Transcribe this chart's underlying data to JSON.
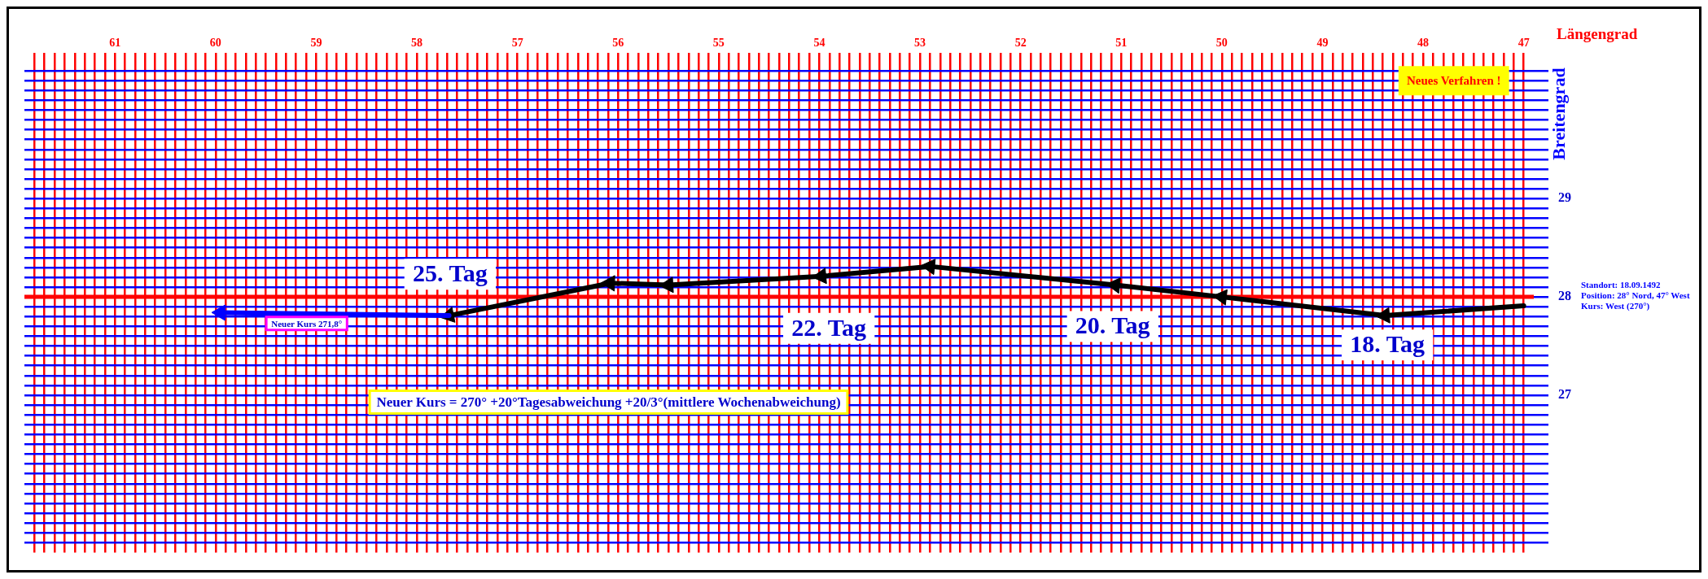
{
  "chart_data": {
    "type": "line",
    "xlabel": "Längengrad",
    "ylabel": "Breitengrad",
    "xlim": [
      61.9,
      46.9
    ],
    "ylim": [
      25.4,
      30.4
    ],
    "xticks": [
      {
        "value": 61.8,
        "label": null
      },
      {
        "value": 61.7,
        "label": null
      },
      {
        "value": 61.6,
        "label": null
      },
      {
        "value": 61.5,
        "label": null
      },
      {
        "value": 61.4,
        "label": null
      },
      {
        "value": 61.3,
        "label": null
      },
      {
        "value": 61.2,
        "label": null
      },
      {
        "value": 61.1,
        "label": null
      },
      61,
      {
        "value": 60.9,
        "label": null
      },
      {
        "value": 60.8,
        "label": null
      },
      {
        "value": 60.7,
        "label": null
      },
      {
        "value": 60.6,
        "label": null
      },
      {
        "value": 60.5,
        "label": null
      },
      {
        "value": 60.4,
        "label": null
      },
      {
        "value": 60.3,
        "label": null
      },
      {
        "value": 60.2,
        "label": null
      },
      {
        "value": 60.1,
        "label": null
      },
      60,
      {
        "value": 59.9,
        "label": null
      },
      {
        "value": 59.8,
        "label": null
      },
      {
        "value": 59.7,
        "label": null
      },
      {
        "value": 59.6,
        "label": null
      },
      {
        "value": 59.5,
        "label": null
      },
      {
        "value": 59.4,
        "label": null
      },
      {
        "value": 59.3,
        "label": null
      },
      {
        "value": 59.2,
        "label": null
      },
      {
        "value": 59.1,
        "label": null
      },
      59,
      {
        "value": 58.9,
        "label": null
      },
      {
        "value": 58.8,
        "label": null
      },
      {
        "value": 58.7,
        "label": null
      },
      {
        "value": 58.6,
        "label": null
      },
      {
        "value": 58.5,
        "label": null
      },
      {
        "value": 58.4,
        "label": null
      },
      {
        "value": 58.3,
        "label": null
      },
      {
        "value": 58.2,
        "label": null
      },
      {
        "value": 58.1,
        "label": null
      },
      58,
      {
        "value": 57.9,
        "label": null
      },
      {
        "value": 57.8,
        "label": null
      },
      {
        "value": 57.7,
        "label": null
      },
      {
        "value": 57.6,
        "label": null
      },
      {
        "value": 57.5,
        "label": null
      },
      {
        "value": 57.4,
        "label": null
      },
      {
        "value": 57.3,
        "label": null
      },
      {
        "value": 57.2,
        "label": null
      },
      {
        "value": 57.1,
        "label": null
      },
      57,
      {
        "value": 56.9,
        "label": null
      },
      {
        "value": 56.8,
        "label": null
      },
      {
        "value": 56.7,
        "label": null
      },
      {
        "value": 56.6,
        "label": null
      },
      {
        "value": 56.5,
        "label": null
      },
      {
        "value": 56.4,
        "label": null
      },
      {
        "value": 56.3,
        "label": null
      },
      {
        "value": 56.2,
        "label": null
      },
      {
        "value": 56.1,
        "label": null
      },
      56,
      {
        "value": 55.9,
        "label": null
      },
      {
        "value": 55.8,
        "label": null
      },
      {
        "value": 55.7,
        "label": null
      },
      {
        "value": 55.6,
        "label": null
      },
      {
        "value": 55.5,
        "label": null
      },
      {
        "value": 55.4,
        "label": null
      },
      {
        "value": 55.3,
        "label": null
      },
      {
        "value": 55.2,
        "label": null
      },
      {
        "value": 55.1,
        "label": null
      },
      55,
      {
        "value": 54.9,
        "label": null
      },
      {
        "value": 54.8,
        "label": null
      },
      {
        "value": 54.7,
        "label": null
      },
      {
        "value": 54.6,
        "label": null
      },
      {
        "value": 54.5,
        "label": null
      },
      {
        "value": 54.4,
        "label": null
      },
      {
        "value": 54.3,
        "label": null
      },
      {
        "value": 54.2,
        "label": null
      },
      {
        "value": 54.1,
        "label": null
      },
      54,
      {
        "value": 53.9,
        "label": null
      },
      {
        "value": 53.8,
        "label": null
      },
      {
        "value": 53.7,
        "label": null
      },
      {
        "value": 53.6,
        "label": null
      },
      {
        "value": 53.5,
        "label": null
      },
      {
        "value": 53.4,
        "label": null
      },
      {
        "value": 53.3,
        "label": null
      },
      {
        "value": 53.2,
        "label": null
      },
      {
        "value": 53.1,
        "label": null
      },
      53,
      {
        "value": 52.9,
        "label": null
      },
      {
        "value": 52.8,
        "label": null
      },
      {
        "value": 52.7,
        "label": null
      },
      {
        "value": 52.6,
        "label": null
      },
      {
        "value": 52.5,
        "label": null
      },
      {
        "value": 52.4,
        "label": null
      },
      {
        "value": 52.3,
        "label": null
      },
      {
        "value": 52.2,
        "label": null
      },
      {
        "value": 52.1,
        "label": null
      },
      52,
      {
        "value": 51.9,
        "label": null
      },
      {
        "value": 51.8,
        "label": null
      },
      {
        "value": 51.7,
        "label": null
      },
      {
        "value": 51.6,
        "label": null
      },
      {
        "value": 51.5,
        "label": null
      },
      {
        "value": 51.4,
        "label": null
      },
      {
        "value": 51.3,
        "label": null
      },
      {
        "value": 51.2,
        "label": null
      },
      {
        "value": 51.1,
        "label": null
      },
      51,
      {
        "value": 50.9,
        "label": null
      },
      {
        "value": 50.8,
        "label": null
      },
      {
        "value": 50.7,
        "label": null
      },
      {
        "value": 50.6,
        "label": null
      },
      {
        "value": 50.5,
        "label": null
      },
      {
        "value": 50.4,
        "label": null
      },
      {
        "value": 50.3,
        "label": null
      },
      {
        "value": 50.2,
        "label": null
      },
      {
        "value": 50.1,
        "label": null
      },
      50,
      {
        "value": 49.9,
        "label": null
      },
      {
        "value": 49.8,
        "label": null
      },
      {
        "value": 49.7,
        "label": null
      },
      {
        "value": 49.6,
        "label": null
      },
      {
        "value": 49.5,
        "label": null
      },
      {
        "value": 49.4,
        "label": null
      },
      {
        "value": 49.3,
        "label": null
      },
      {
        "value": 49.2,
        "label": null
      },
      {
        "value": 49.1,
        "label": null
      },
      49,
      {
        "value": 48.9,
        "label": null
      },
      {
        "value": 48.8,
        "label": null
      },
      {
        "value": 48.7,
        "label": null
      },
      {
        "value": 48.6,
        "label": null
      },
      {
        "value": 48.5,
        "label": null
      },
      {
        "value": 48.4,
        "label": null
      },
      {
        "value": 48.3,
        "label": null
      },
      {
        "value": 48.2,
        "label": null
      },
      {
        "value": 48.1,
        "label": null
      },
      48,
      {
        "value": 47.9,
        "label": null
      },
      {
        "value": 47.8,
        "label": null
      },
      {
        "value": 47.7,
        "label": null
      },
      {
        "value": 47.6,
        "label": null
      },
      {
        "value": 47.5,
        "label": null
      },
      {
        "value": 47.4,
        "label": null
      },
      {
        "value": 47.3,
        "label": null
      },
      {
        "value": 47.2,
        "label": null
      },
      {
        "value": 47.1,
        "label": null
      },
      47
    ],
    "yticks": [
      {
        "value": 25.5,
        "label": null
      },
      {
        "value": 25.6,
        "label": null
      },
      {
        "value": 25.7,
        "label": null
      },
      {
        "value": 25.8,
        "label": null
      },
      {
        "value": 25.9,
        "label": null
      },
      {
        "value": 26,
        "label": null
      },
      {
        "value": 26.1,
        "label": null
      },
      {
        "value": 26.2,
        "label": null
      },
      {
        "value": 26.3,
        "label": null
      },
      {
        "value": 26.4,
        "label": null
      },
      {
        "value": 26.5,
        "label": null
      },
      {
        "value": 26.6,
        "label": null
      },
      {
        "value": 26.7,
        "label": null
      },
      {
        "value": 26.8,
        "label": null
      },
      {
        "value": 26.9,
        "label": null
      },
      27,
      {
        "value": 27.1,
        "label": null
      },
      {
        "value": 27.2,
        "label": null
      },
      {
        "value": 27.3,
        "label": null
      },
      {
        "value": 27.4,
        "label": null
      },
      {
        "value": 27.5,
        "label": null
      },
      {
        "value": 27.6,
        "label": null
      },
      {
        "value": 27.7,
        "label": null
      },
      {
        "value": 27.8,
        "label": null
      },
      {
        "value": 27.9,
        "label": null
      },
      28,
      {
        "value": 28.1,
        "label": null
      },
      {
        "value": 28.2,
        "label": null
      },
      {
        "value": 28.3,
        "label": null
      },
      {
        "value": 28.4,
        "label": null
      },
      {
        "value": 28.5,
        "label": null
      },
      {
        "value": 28.6,
        "label": null
      },
      {
        "value": 28.7,
        "label": null
      },
      {
        "value": 28.8,
        "label": null
      },
      {
        "value": 28.9,
        "label": null
      },
      29,
      {
        "value": 29.1,
        "label": null
      },
      {
        "value": 29.2,
        "label": null
      },
      {
        "value": 29.3,
        "label": null
      },
      {
        "value": 29.4,
        "label": null
      },
      {
        "value": 29.5,
        "label": null
      },
      {
        "value": 29.6,
        "label": null
      },
      {
        "value": 29.7,
        "label": null
      },
      {
        "value": 29.8,
        "label": null
      },
      {
        "value": 29.9,
        "label": null
      },
      {
        "value": 30,
        "label": null
      },
      {
        "value": 30.1,
        "label": null
      },
      {
        "value": 30.2,
        "label": null
      },
      {
        "value": 30.3,
        "label": null
      }
    ],
    "grid": true,
    "marker": "triangle",
    "series": [
      {
        "color": "#000000",
        "x": [
          47,
          48.38,
          50.0,
          51.06,
          52.9,
          53.98,
          55.5,
          56.08,
          57.68
        ],
        "values": [
          27.91,
          27.81,
          28.0,
          28.12,
          28.31,
          28.21,
          28.12,
          28.14,
          27.81
        ]
      },
      {
        "color": "#0000ff",
        "x": [
          57.68,
          59.95
        ],
        "values": [
          27.81,
          27.84
        ]
      }
    ],
    "ref_lines": [
      {
        "axis": "y",
        "value": 28,
        "color": "#ff0000"
      }
    ],
    "annotations": [
      "25. Tag",
      "22. Tag",
      "20. Tag",
      "18. Tag",
      "Neuer Kurs = 270° +20°Tagesabweichung +20/3°(mittlere Wochenabweichung)",
      "Neuer Kurs 271,8°",
      "Neues Verfahren !",
      "Standort: 18.09.1492\nPosition: 28° Nord, 47° West\nKurs: West (270°)"
    ]
  }
}
